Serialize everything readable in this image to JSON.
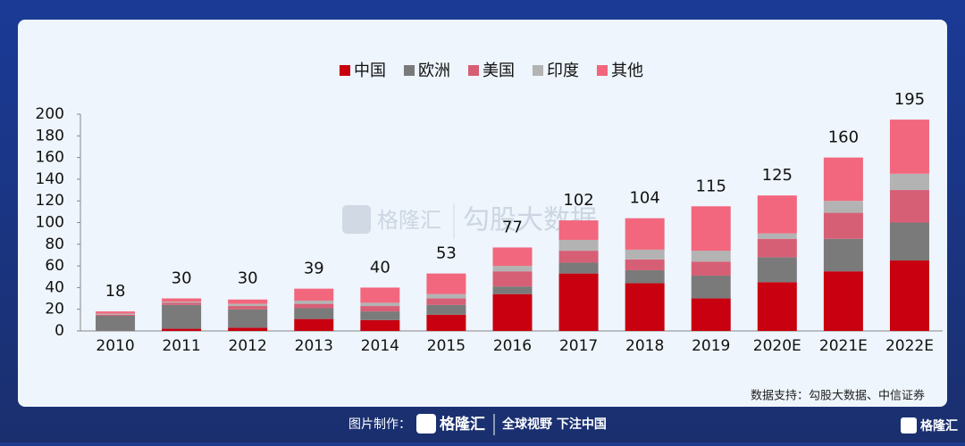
{
  "chart_data": {
    "type": "stacked-bar",
    "categories": [
      "2010",
      "2011",
      "2012",
      "2013",
      "2014",
      "2015",
      "2016",
      "2017",
      "2018",
      "2019",
      "2020E",
      "2021E",
      "2022E"
    ],
    "series": [
      {
        "name": "中国",
        "color": "#c8000f",
        "values": [
          0,
          2,
          3,
          11,
          10,
          15,
          34,
          53,
          44,
          30,
          45,
          55,
          65
        ]
      },
      {
        "name": "欧洲",
        "color": "#7a7a7a",
        "values": [
          14,
          22,
          17,
          10,
          8,
          9,
          7,
          10,
          12,
          21,
          23,
          30,
          35
        ]
      },
      {
        "name": "美国",
        "color": "#d75f75",
        "values": [
          1,
          2,
          3,
          4,
          5,
          6,
          14,
          11,
          10,
          13,
          17,
          24,
          30
        ]
      },
      {
        "name": "印度",
        "color": "#b3b3b3",
        "values": [
          1,
          1,
          2,
          3,
          3,
          4,
          5,
          10,
          9,
          10,
          5,
          11,
          15
        ]
      },
      {
        "name": "其他",
        "color": "#f2677d",
        "values": [
          2,
          3,
          4,
          11,
          14,
          19,
          17,
          18,
          29,
          41,
          35,
          40,
          50
        ]
      }
    ],
    "totals": [
      18,
      30,
      30,
      39,
      40,
      53,
      77,
      102,
      104,
      115,
      125,
      160,
      195
    ],
    "ylim": [
      0,
      200
    ],
    "yticks": [
      0,
      20,
      40,
      60,
      80,
      100,
      120,
      140,
      160,
      180,
      200
    ],
    "grid": false,
    "legend": "top",
    "source": "数据支持：勾股大数据、中信证券"
  },
  "watermark": {
    "brand": "格隆汇",
    "product": "勾股大数据"
  },
  "footer": {
    "prefix": "图片制作：",
    "brand": "格隆汇",
    "slogan": "全球视野 下注中国",
    "logo": "格隆汇"
  }
}
